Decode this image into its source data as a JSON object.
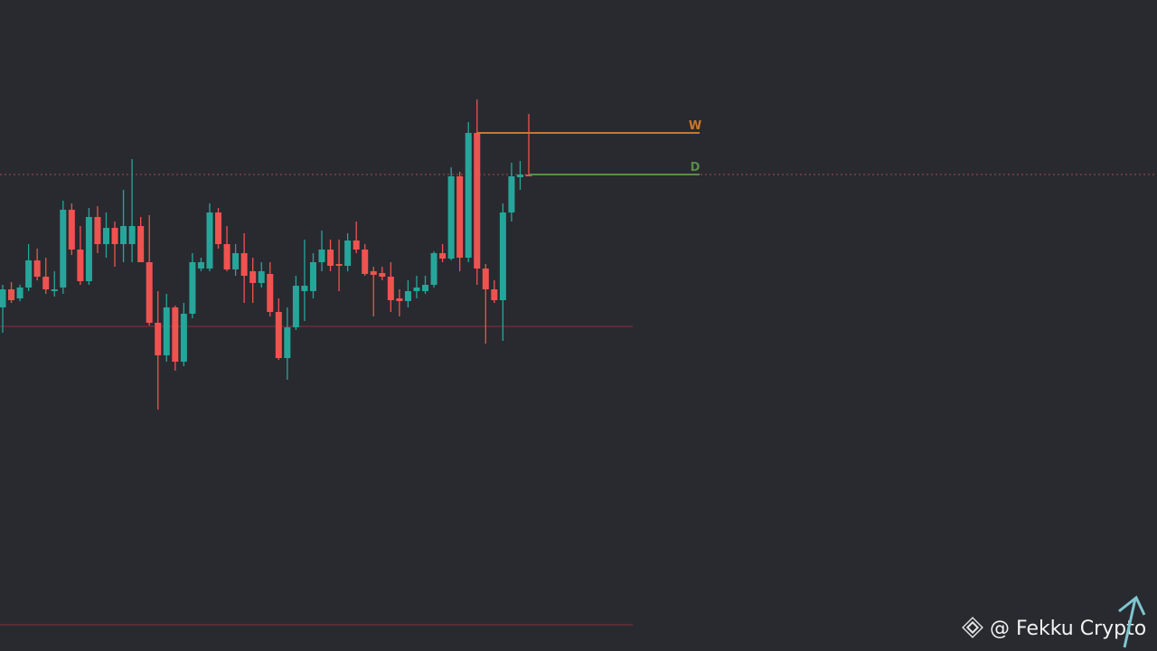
{
  "chart_data": {
    "type": "candlestick",
    "ylim": [
      0,
      720
    ],
    "up_color": "#26a69a",
    "down_color": "#ef5350",
    "open": [
      380,
      400,
      390,
      402,
      432,
      414,
      398,
      402,
      488,
      444,
      409,
      480,
      450,
      468,
      450,
      450,
      470,
      430,
      363,
      327,
      380,
      320,
      373,
      423,
      423,
      485,
      450,
      422,
      440,
      420,
      407,
      417,
      375,
      324,
      358,
      398,
      398,
      430,
      444,
      428,
      426,
      454,
      444,
      420,
      418,
      414,
      390,
      387,
      398,
      398,
      405,
      440,
      434,
      525,
      435,
      573,
      423,
      400,
      388,
      485,
      524,
      527
    ],
    "high": [
      405,
      408,
      405,
      450,
      445,
      435,
      420,
      498,
      495,
      470,
      490,
      492,
      485,
      475,
      510,
      544,
      480,
      482,
      398,
      395,
      382,
      385,
      440,
      435,
      495,
      490,
      470,
      450,
      462,
      435,
      430,
      430,
      390,
      380,
      415,
      455,
      440,
      465,
      455,
      455,
      462,
      475,
      450,
      425,
      425,
      430,
      400,
      410,
      415,
      415,
      442,
      450,
      535,
      530,
      585,
      610,
      428,
      410,
      495,
      540,
      542,
      594
    ],
    "low": [
      352,
      385,
      387,
      398,
      410,
      395,
      392,
      395,
      438,
      405,
      405,
      440,
      435,
      425,
      430,
      430,
      430,
      360,
      267,
      320,
      310,
      315,
      368,
      420,
      420,
      445,
      420,
      415,
      385,
      385,
      402,
      370,
      322,
      300,
      355,
      365,
      390,
      420,
      420,
      398,
      420,
      440,
      415,
      370,
      410,
      375,
      370,
      380,
      390,
      395,
      402,
      430,
      432,
      420,
      430,
      405,
      340,
      385,
      343,
      475,
      510,
      525
    ],
    "close": [
      400,
      388,
      402,
      432,
      414,
      400,
      400,
      488,
      444,
      409,
      480,
      450,
      468,
      450,
      470,
      470,
      430,
      363,
      327,
      380,
      320,
      373,
      430,
      430,
      485,
      450,
      422,
      440,
      415,
      407,
      420,
      375,
      324,
      358,
      404,
      404,
      430,
      444,
      426,
      426,
      454,
      444,
      417,
      416,
      414,
      388,
      387,
      398,
      402,
      405,
      440,
      434,
      525,
      435,
      573,
      423,
      400,
      388,
      485,
      525,
      527,
      525
    ],
    "levels": [
      {
        "name": "W",
        "value": 573,
        "color": "#c9772c"
      },
      {
        "name": "D",
        "value": 527,
        "color": "#5c8a4a"
      }
    ],
    "reference_line": {
      "value": 527,
      "color": "#a84a4a"
    },
    "hlines": [
      359,
      29
    ],
    "hline_color": "#6b2e36",
    "watermark": "@ Fekku Crypto"
  }
}
